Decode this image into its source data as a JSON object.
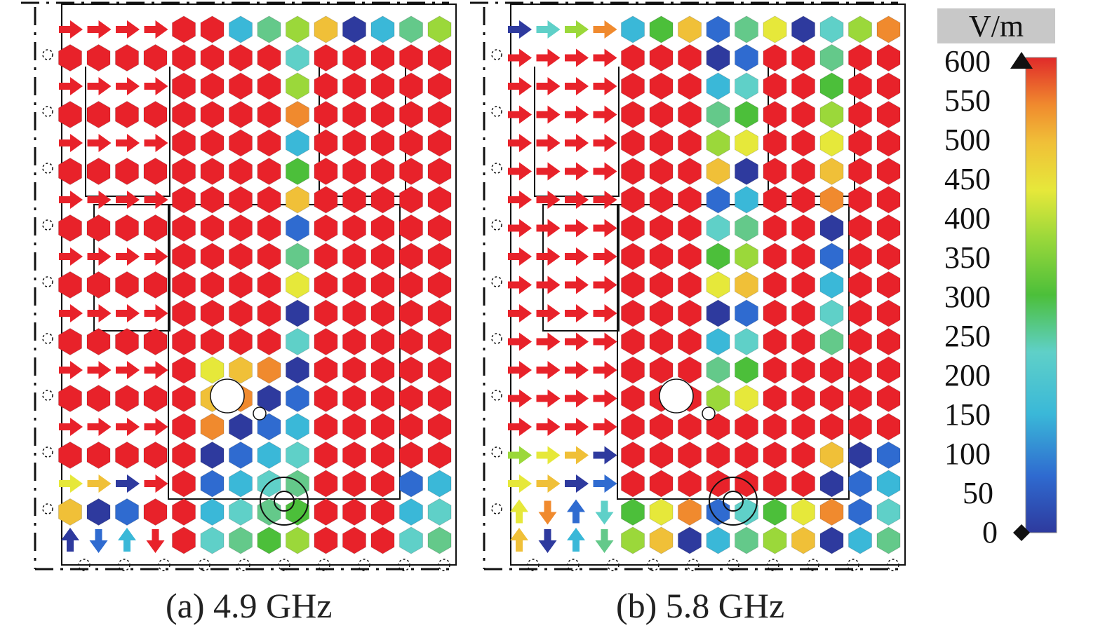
{
  "panels": [
    {
      "caption": "(a) 4.9 GHz"
    },
    {
      "caption": "(b) 5.8 GHz"
    }
  ],
  "colorbar": {
    "unit": "V/m",
    "ticks": [
      "600",
      "550",
      "500",
      "450",
      "400",
      "350",
      "300",
      "250",
      "200",
      "150",
      "100",
      "50",
      "0"
    ],
    "colors": [
      "#2e3a9e",
      "#2f6bd0",
      "#3ab8d8",
      "#5fd0c8",
      "#64c98a",
      "#4cbf3a",
      "#9bd83a",
      "#e6e83a",
      "#f0c038",
      "#f08a2e",
      "#e8402a",
      "#e02a2a"
    ]
  },
  "field_color": "#e8222a"
}
